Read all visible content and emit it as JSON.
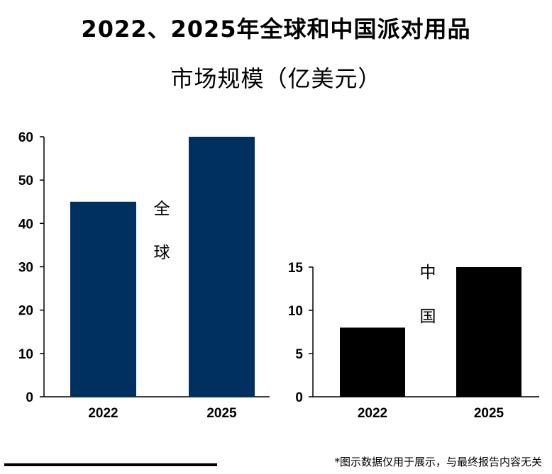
{
  "title": {
    "line1": "2022、2025年全球和中国派对用品",
    "line2": "市场规模（亿美元）"
  },
  "footnote": "*图示数据仅用于展示，与最终报告内容无关",
  "colors": {
    "global": "#003060",
    "china": "#000000"
  },
  "chart_data": [
    {
      "type": "bar",
      "name": "全球",
      "label_chars": [
        "全",
        "球"
      ],
      "categories": [
        "2022",
        "2025"
      ],
      "values": [
        45,
        60
      ],
      "ylim": [
        0,
        60
      ],
      "yticks": [
        0,
        10,
        20,
        30,
        40,
        50,
        60
      ]
    },
    {
      "type": "bar",
      "name": "中国",
      "label_chars": [
        "中",
        "国"
      ],
      "categories": [
        "2022",
        "2025"
      ],
      "values": [
        8,
        15
      ],
      "ylim": [
        0,
        15
      ],
      "yticks": [
        0,
        5,
        10,
        15
      ]
    }
  ]
}
